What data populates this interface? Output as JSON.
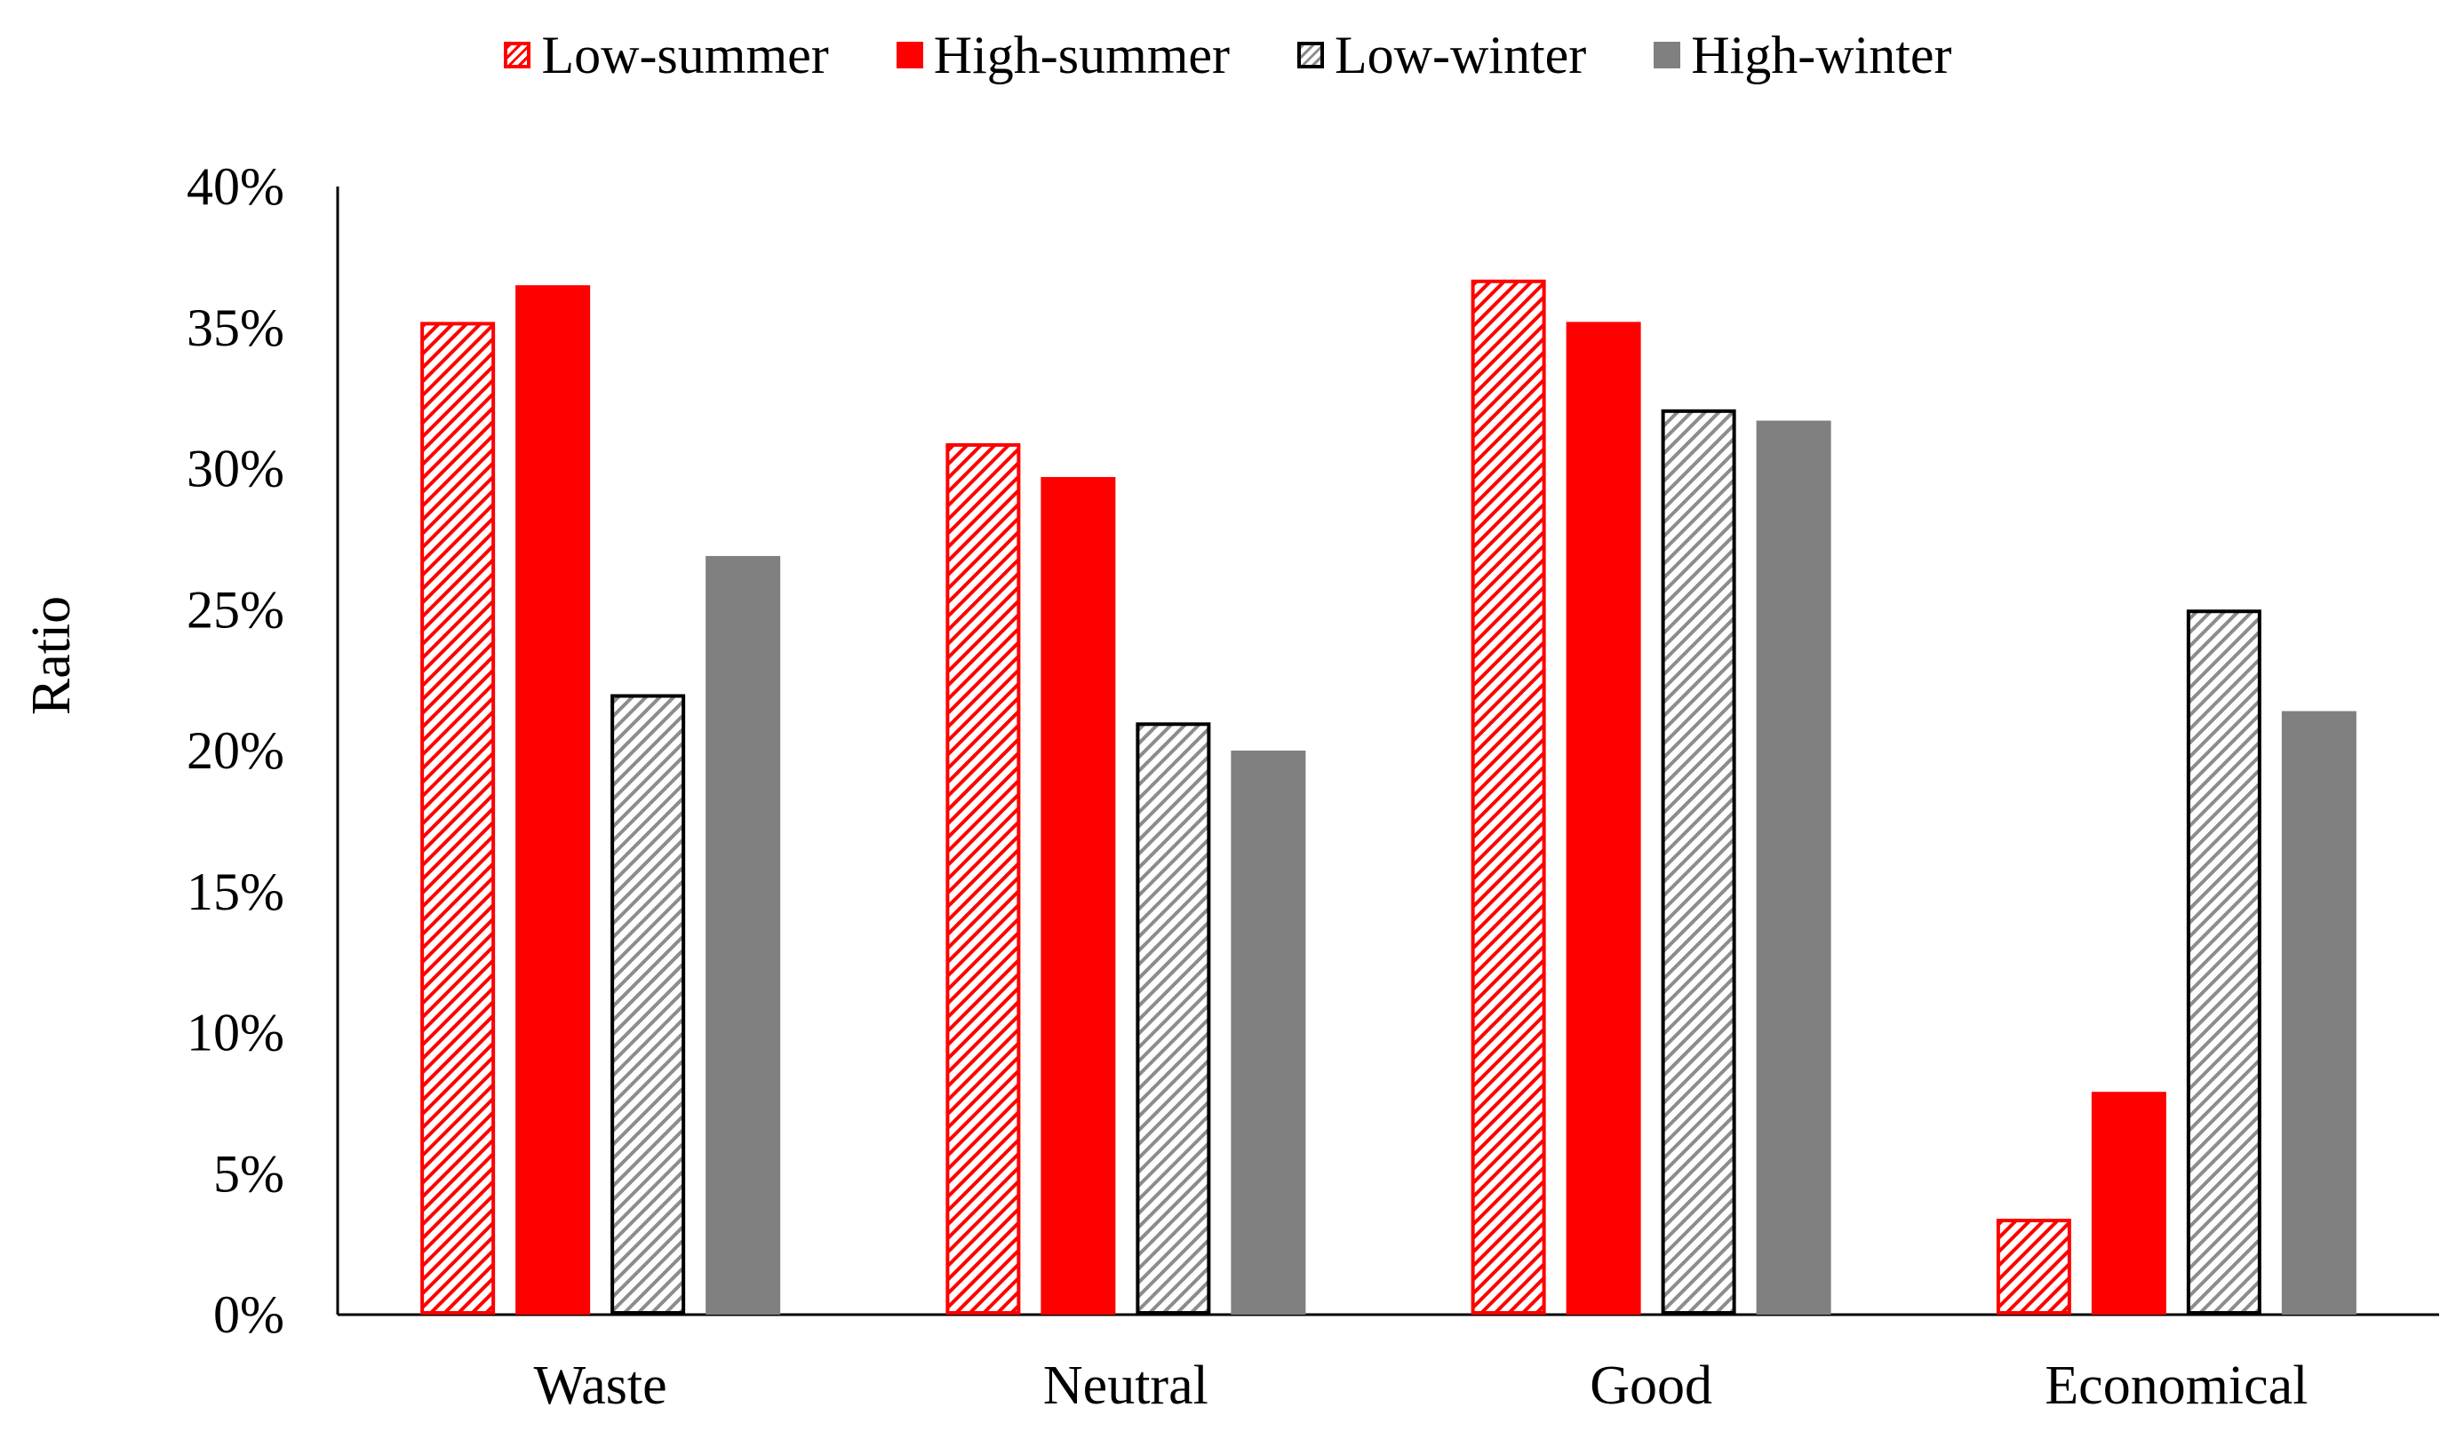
{
  "colors": {
    "red": "#ff0000",
    "gray": "#808080",
    "hatch_gray": "#8c8c8c",
    "axis": "#000000"
  },
  "chart_data": {
    "type": "bar",
    "title": "",
    "xlabel": "",
    "ylabel": "Ratio",
    "ylim": [
      0,
      40
    ],
    "yticks": [
      0,
      5,
      10,
      15,
      20,
      25,
      30,
      35,
      40
    ],
    "ytick_labels": [
      "0%",
      "5%",
      "10%",
      "15%",
      "20%",
      "25%",
      "30%",
      "35%",
      "40%"
    ],
    "grid": false,
    "legend_position": "top",
    "categories": [
      "Waste",
      "Neutral",
      "Good",
      "Economical"
    ],
    "series": [
      {
        "name": "Low-summer",
        "style": "hatched-red",
        "values": [
          35.2,
          30.9,
          36.7,
          3.4
        ]
      },
      {
        "name": "High-summer",
        "style": "solid-red",
        "values": [
          36.5,
          29.7,
          35.2,
          7.9
        ]
      },
      {
        "name": "Low-winter",
        "style": "hatched-black",
        "values": [
          22.0,
          21.0,
          32.1,
          25.0
        ]
      },
      {
        "name": "High-winter",
        "style": "solid-gray",
        "values": [
          26.9,
          20.0,
          31.7,
          21.4
        ]
      }
    ]
  }
}
